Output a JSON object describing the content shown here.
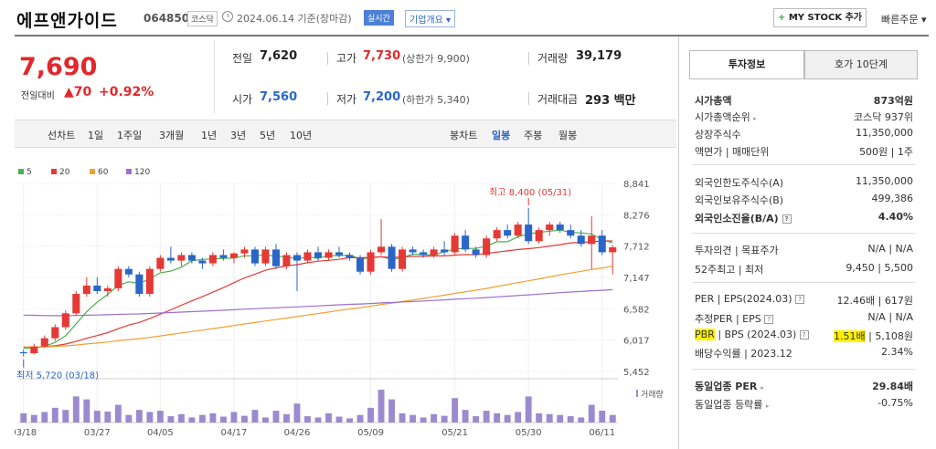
{
  "header": {
    "name": "에프앤가이드",
    "code": "064850",
    "market": "코스닥",
    "date_basis": "2024.06.14 기준(장마감)",
    "realtime": "실시간",
    "company_overview": "기업개요",
    "mystock_button": "MY STOCK 추가",
    "quick_order": "빠른주문"
  },
  "price": {
    "current": "7,690",
    "change_label": "전일대비",
    "change": "▲70",
    "change_pct": "+0.92%"
  },
  "stats": {
    "prev_close": {
      "label": "전일",
      "value": "7,620"
    },
    "open": {
      "label": "시가",
      "value": "7,560"
    },
    "high": {
      "label": "고가",
      "value": "7,730",
      "sub": "(상한가 9,900)"
    },
    "low": {
      "label": "저가",
      "value": "7,200",
      "sub": "(하한가 5,340)"
    },
    "volume": {
      "label": "거래량",
      "value": "39,179"
    },
    "amount": {
      "label": "거래대금",
      "value": "293 백만"
    }
  },
  "period_bar": {
    "line_chart": "선차트",
    "periods": [
      "1일",
      "1주일",
      "3개월",
      "1년",
      "3년",
      "5년",
      "10년"
    ],
    "candle_chart": "봉차트",
    "candles": [
      "일봉",
      "주봉",
      "월봉"
    ]
  },
  "chart_data": {
    "type": "candlestick",
    "legend": [
      "5",
      "20",
      "60",
      "120"
    ],
    "legend_colors": [
      "#4caf50",
      "#e53935",
      "#f0a030",
      "#9c6fd0"
    ],
    "y_ticks": [
      "8,841",
      "8,276",
      "7,712",
      "7,147",
      "6,582",
      "6,017",
      "5,452"
    ],
    "ylim": [
      5452,
      8841
    ],
    "x_labels": [
      "03/18",
      "03/27",
      "04/05",
      "04/17",
      "04/26",
      "05/09",
      "05/21",
      "05/30",
      "06/11"
    ],
    "x_label_index": [
      0,
      7,
      13,
      20,
      26,
      33,
      41,
      48,
      55
    ],
    "max_annotation": "최고 8,400 (05/31)",
    "min_annotation": "최저 5,720 (03/18)",
    "volume_label": "거래량",
    "candles": [
      [
        5800,
        5850,
        5720,
        5780
      ],
      [
        5780,
        5950,
        5760,
        5900
      ],
      [
        5900,
        6100,
        5880,
        6050
      ],
      [
        6050,
        6300,
        6000,
        6250
      ],
      [
        6250,
        6550,
        6200,
        6500
      ],
      [
        6500,
        6900,
        6450,
        6850
      ],
      [
        6850,
        7150,
        6800,
        7000
      ],
      [
        7000,
        7150,
        6850,
        6900
      ],
      [
        6900,
        7000,
        6800,
        6950
      ],
      [
        6950,
        7350,
        6900,
        7300
      ],
      [
        7300,
        7350,
        7150,
        7200
      ],
      [
        7200,
        7250,
        6800,
        6850
      ],
      [
        6850,
        7350,
        6800,
        7300
      ],
      [
        7300,
        7550,
        7250,
        7500
      ],
      [
        7500,
        7700,
        7400,
        7450
      ],
      [
        7450,
        7600,
        7350,
        7550
      ],
      [
        7550,
        7600,
        7400,
        7450
      ],
      [
        7450,
        7500,
        7300,
        7400
      ],
      [
        7400,
        7600,
        7350,
        7550
      ],
      [
        7550,
        7650,
        7450,
        7500
      ],
      [
        7500,
        7600,
        7400,
        7580
      ],
      [
        7580,
        7700,
        7500,
        7650
      ],
      [
        7650,
        7700,
        7350,
        7400
      ],
      [
        7400,
        7700,
        7350,
        7650
      ],
      [
        7650,
        7750,
        7300,
        7350
      ],
      [
        7350,
        7600,
        7300,
        7550
      ],
      [
        7550,
        7600,
        6900,
        7450
      ],
      [
        7450,
        7650,
        7400,
        7600
      ],
      [
        7600,
        7700,
        7450,
        7500
      ],
      [
        7500,
        7650,
        7450,
        7600
      ],
      [
        7600,
        7700,
        7500,
        7550
      ],
      [
        7550,
        7600,
        7450,
        7500
      ],
      [
        7500,
        7550,
        7200,
        7250
      ],
      [
        7250,
        7650,
        7200,
        7600
      ],
      [
        7600,
        8200,
        7550,
        7700
      ],
      [
        7700,
        7750,
        7250,
        7300
      ],
      [
        7300,
        7700,
        7250,
        7650
      ],
      [
        7650,
        7700,
        7550,
        7600
      ],
      [
        7600,
        7650,
        7500,
        7550
      ],
      [
        7550,
        7700,
        7500,
        7650
      ],
      [
        7650,
        7800,
        7550,
        7600
      ],
      [
        7600,
        7950,
        7550,
        7900
      ],
      [
        7900,
        8000,
        7600,
        7650
      ],
      [
        7650,
        7700,
        7500,
        7550
      ],
      [
        7550,
        7900,
        7500,
        7850
      ],
      [
        7850,
        8050,
        7800,
        8000
      ],
      [
        8000,
        8100,
        7850,
        7900
      ],
      [
        7900,
        8150,
        7850,
        8100
      ],
      [
        8100,
        8400,
        7750,
        7800
      ],
      [
        7800,
        8050,
        7750,
        8000
      ],
      [
        8000,
        8150,
        7900,
        8100
      ],
      [
        8100,
        8150,
        7950,
        8000
      ],
      [
        8000,
        8100,
        7850,
        7900
      ],
      [
        7900,
        8000,
        7700,
        7750
      ],
      [
        7750,
        8250,
        7300,
        7900
      ],
      [
        7900,
        8000,
        7550,
        7600
      ],
      [
        7600,
        7730,
        7200,
        7690
      ]
    ],
    "volumes": [
      22,
      18,
      25,
      35,
      30,
      62,
      55,
      28,
      26,
      42,
      18,
      30,
      25,
      28,
      15,
      20,
      12,
      18,
      22,
      14,
      25,
      16,
      30,
      12,
      28,
      20,
      45,
      15,
      12,
      22,
      14,
      10,
      18,
      35,
      78,
      55,
      22,
      18,
      12,
      20,
      16,
      58,
      30,
      15,
      28,
      22,
      18,
      25,
      62,
      22,
      20,
      18,
      15,
      12,
      42,
      28,
      18
    ]
  },
  "panel": {
    "tab_info": "투자정보",
    "tab_hoga": "호가 10단계",
    "rows1": [
      {
        "k": "시가총액",
        "v": "873억원",
        "bold": true
      },
      {
        "k": "시가총액순위",
        "v": "코스닥 937위",
        "arrow": true
      },
      {
        "k": "상장주식수",
        "v": "11,350,000"
      },
      {
        "k": "액면가 | 매매단위",
        "v": "500원 | 1주"
      }
    ],
    "rows2": [
      {
        "k": "외국인한도주식수(A)",
        "v": "11,350,000"
      },
      {
        "k": "외국인보유주식수(B)",
        "v": "499,386"
      },
      {
        "k": "외국인소진율(B/A)",
        "v": "4.40%",
        "bold": true,
        "q": true
      }
    ],
    "rows3": [
      {
        "k": "투자의견 | 목표주가",
        "v": "N/A | N/A"
      },
      {
        "k": "52주최고 | 최저",
        "v": "9,450 | 5,500"
      }
    ],
    "per": {
      "k": "PER | EPS(2024.03)",
      "v_main": "12.46배",
      "v_sub": "617원"
    },
    "est_per": {
      "k": "추정PER | EPS",
      "v_main": "N/A",
      "v_sub": "N/A"
    },
    "pbr": {
      "k_hl": "PBR",
      "k_rest": " | BPS (2024.03)",
      "v_main": "1.51배",
      "v_sub": "5,108원"
    },
    "div": {
      "k": "배당수익률 | 2023.12",
      "v": "2.34%"
    },
    "industry_per": {
      "k": "동일업종 PER",
      "v": "29.84배"
    },
    "industry_rate": {
      "k": "동일업종 등락률",
      "v": "-0.75%"
    }
  }
}
